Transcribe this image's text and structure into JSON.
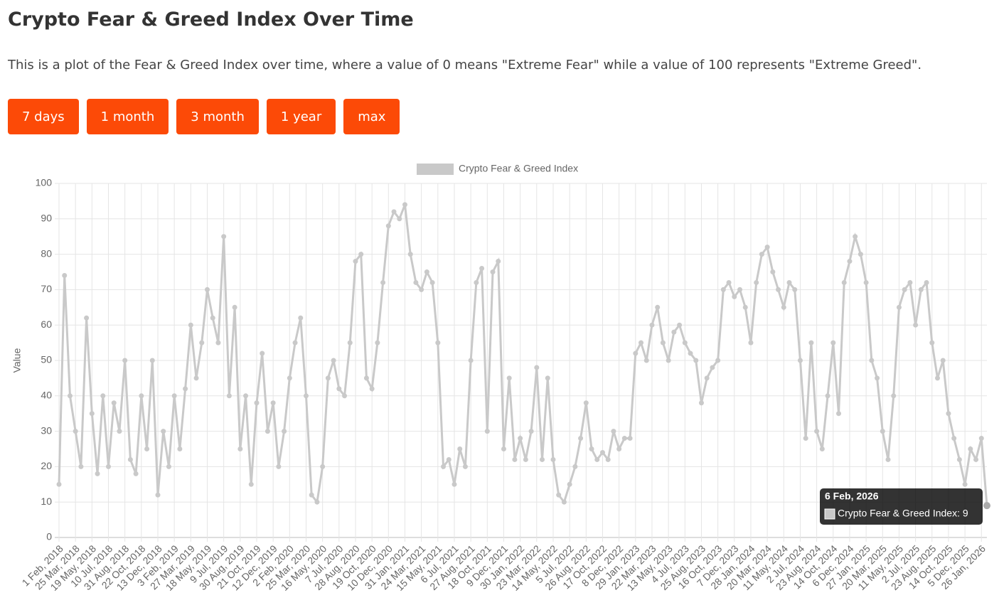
{
  "header": {
    "title": "Crypto Fear & Greed Index Over Time",
    "description": "This is a plot of the Fear & Greed Index over time, where a value of 0 means \"Extreme Fear\" while a value of 100 represents \"Extreme Greed\"."
  },
  "buttons": [
    "7 days",
    "1 month",
    "3 month",
    "1 year",
    "max"
  ],
  "tooltip": {
    "title": "6 Feb, 2026",
    "label": "Crypto Fear & Greed Index: 9"
  },
  "chart_data": {
    "type": "line",
    "y_label": "Value",
    "legend_position": "top",
    "grid": true,
    "ylim": [
      0,
      100
    ],
    "yticks": [
      0,
      10,
      20,
      30,
      40,
      50,
      60,
      70,
      80,
      90,
      100
    ],
    "categories": [
      "1 Feb, 2018",
      null,
      null,
      "25 Mar, 2018",
      null,
      null,
      "19 May, 2018",
      null,
      null,
      "10 Jul, 2018",
      null,
      null,
      "31 Aug, 2018",
      null,
      null,
      "22 Oct, 2018",
      null,
      null,
      "13 Dec, 2018",
      null,
      null,
      "3 Feb, 2019",
      null,
      null,
      "27 Mar, 2019",
      null,
      null,
      "18 May, 2019",
      null,
      null,
      "9 Jul, 2019",
      null,
      null,
      "30 Aug, 2019",
      null,
      null,
      "21 Oct, 2019",
      null,
      null,
      "12 Dec, 2019",
      null,
      null,
      "2 Feb, 2020",
      null,
      null,
      "25 Mar, 2020",
      null,
      null,
      "16 May, 2020",
      null,
      null,
      "7 Jul, 2020",
      null,
      null,
      "28 Aug, 2020",
      null,
      null,
      "19 Oct, 2020",
      null,
      null,
      "10 Dec, 2020",
      null,
      null,
      "31 Jan, 2021",
      null,
      null,
      "24 Mar, 2021",
      null,
      null,
      "15 May, 2021",
      null,
      null,
      "6 Jul, 2021",
      null,
      null,
      "27 Aug, 2021",
      null,
      null,
      "18 Oct, 2021",
      null,
      null,
      "9 Dec, 2021",
      null,
      null,
      "30 Jan, 2022",
      null,
      null,
      "23 Mar, 2022",
      null,
      null,
      "14 May, 2022",
      null,
      null,
      "5 Jul, 2022",
      null,
      null,
      "26 Aug, 2022",
      null,
      null,
      "17 Oct, 2022",
      null,
      null,
      "8 Dec, 2022",
      null,
      null,
      "29 Jan, 2023",
      null,
      null,
      "22 Mar, 2023",
      null,
      null,
      "13 May, 2023",
      null,
      null,
      "4 Jul, 2023",
      null,
      null,
      "25 Aug, 2023",
      null,
      null,
      "16 Oct, 2023",
      null,
      null,
      "7 Dec, 2023",
      null,
      null,
      "28 Jan, 2024",
      null,
      null,
      "20 Mar, 2024",
      null,
      null,
      "11 May, 2024",
      null,
      null,
      "2 Jul, 2024",
      null,
      null,
      "23 Aug, 2024",
      null,
      null,
      "14 Oct, 2024",
      null,
      null,
      "6 Dec, 2024",
      null,
      null,
      "27 Jan, 2025",
      null,
      null,
      "20 Mar, 2025",
      null,
      null,
      "11 May, 2025",
      null,
      null,
      "2 Jul, 2025",
      null,
      null,
      "23 Aug, 2025",
      null,
      null,
      "14 Oct, 2025",
      null,
      null,
      "5 Dec, 2025",
      null,
      null,
      "26 Jan, 2026",
      null
    ],
    "series": [
      {
        "name": "Crypto Fear & Greed Index",
        "color": "#c9c9c9",
        "values": [
          15,
          74,
          40,
          30,
          20,
          62,
          35,
          18,
          40,
          20,
          38,
          30,
          50,
          22,
          18,
          40,
          25,
          50,
          12,
          30,
          20,
          40,
          25,
          42,
          60,
          45,
          55,
          70,
          62,
          55,
          85,
          40,
          65,
          25,
          40,
          15,
          38,
          52,
          30,
          38,
          20,
          30,
          45,
          55,
          62,
          40,
          12,
          10,
          20,
          45,
          50,
          42,
          40,
          55,
          78,
          80,
          45,
          42,
          55,
          72,
          88,
          92,
          90,
          94,
          80,
          72,
          70,
          75,
          72,
          55,
          20,
          22,
          15,
          25,
          20,
          50,
          72,
          76,
          30,
          75,
          78,
          25,
          45,
          22,
          28,
          22,
          30,
          48,
          22,
          45,
          22,
          12,
          10,
          15,
          20,
          28,
          38,
          25,
          22,
          24,
          22,
          30,
          25,
          28,
          28,
          52,
          55,
          50,
          60,
          65,
          55,
          50,
          58,
          60,
          55,
          52,
          50,
          38,
          45,
          48,
          50,
          70,
          72,
          68,
          70,
          65,
          55,
          72,
          80,
          82,
          75,
          70,
          65,
          72,
          70,
          50,
          28,
          55,
          30,
          25,
          40,
          55,
          35,
          72,
          78,
          85,
          80,
          72,
          50,
          45,
          30,
          22,
          40,
          65,
          70,
          72,
          60,
          70,
          72,
          55,
          45,
          50,
          35,
          28,
          22,
          15,
          25,
          22,
          28,
          9
        ]
      }
    ]
  }
}
